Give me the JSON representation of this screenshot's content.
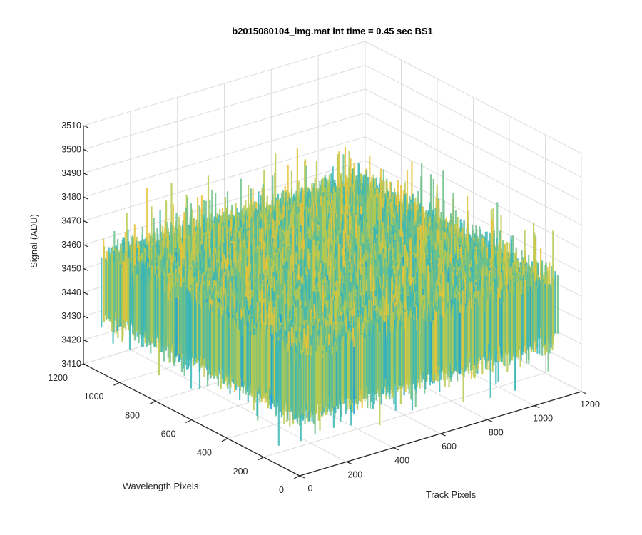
{
  "chart_data": {
    "type": "surface",
    "title": "b2015080104_img.mat int time = 0.45 sec   BS1",
    "xlabel": "Track Pixels",
    "ylabel": "Wavelength Pixels",
    "zlabel": "Signal (ADU)",
    "xlim": [
      0,
      1200
    ],
    "ylim": [
      0,
      1200
    ],
    "zlim": [
      3410,
      3510
    ],
    "x_ticks": [
      "0",
      "200",
      "400",
      "600",
      "800",
      "1000",
      "1200"
    ],
    "y_ticks": [
      "0",
      "200",
      "400",
      "600",
      "800",
      "1000",
      "1200"
    ],
    "z_ticks": [
      "3410",
      "3420",
      "3430",
      "3440",
      "3450",
      "3460",
      "3470",
      "3480",
      "3490",
      "3500",
      "3510"
    ],
    "surface_extent": {
      "x": [
        0,
        1100
      ],
      "y": [
        0,
        1100
      ]
    },
    "signal_mean": 3448,
    "signal_range_typical": [
      3430,
      3465
    ],
    "signal_range_extreme": [
      3418,
      3485
    ],
    "grid": true,
    "colormap": [
      "#0072bd",
      "#1f9fd3",
      "#3bb6b6",
      "#6cc08a",
      "#b8c94f",
      "#e8c33a"
    ]
  }
}
